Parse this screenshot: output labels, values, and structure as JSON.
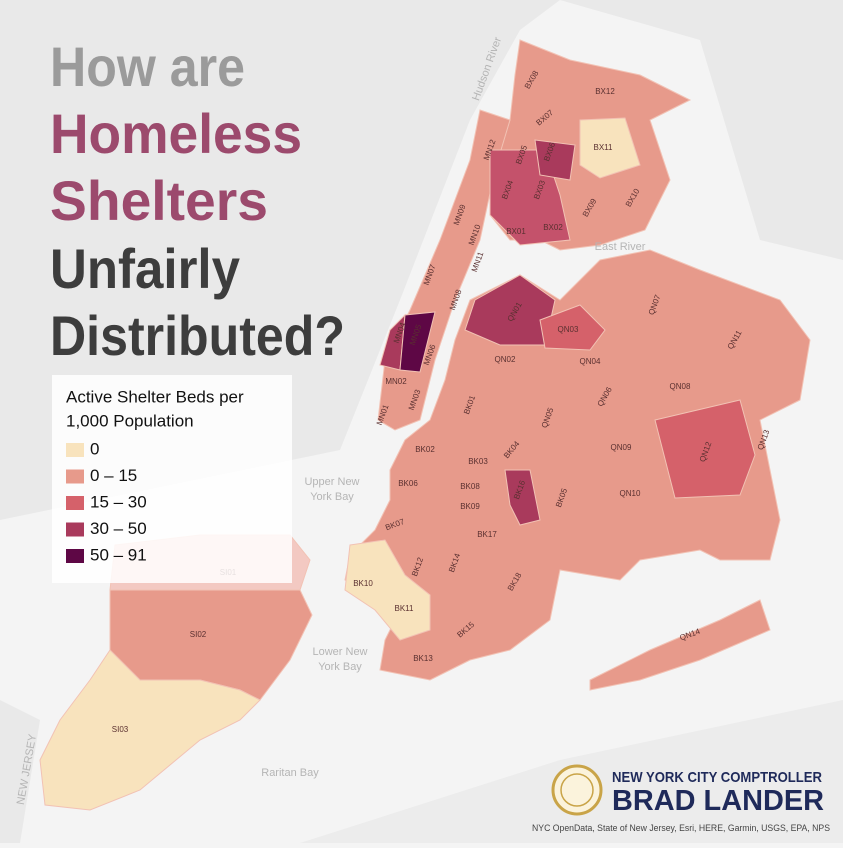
{
  "title": {
    "lines": [
      "How are",
      "Homeless",
      "Shelters",
      "Unfairly",
      "Distributed?"
    ]
  },
  "legend": {
    "title_lines": [
      "Active Shelter Beds per",
      "1,000 Population"
    ],
    "items": [
      {
        "label": "0",
        "color": "#f8e3bd"
      },
      {
        "label": "0 – 15",
        "color": "#e79a8b"
      },
      {
        "label": "15 – 30",
        "color": "#d5616a"
      },
      {
        "label": "30 – 50",
        "color": "#a93a5c"
      },
      {
        "label": "50 – 91",
        "color": "#5e0745"
      }
    ]
  },
  "districts": [
    "BX08",
    "BX12",
    "BX07",
    "BX05",
    "BX06",
    "BX11",
    "BX04",
    "BX03",
    "BX09",
    "BX10",
    "BX01",
    "BX02",
    "MN12",
    "MN09",
    "MN10",
    "MN11",
    "MN07",
    "MN08",
    "MN04",
    "MN05",
    "MN06",
    "MN02",
    "MN03",
    "MN01",
    "QN01",
    "QN03",
    "QN02",
    "QN04",
    "QN07",
    "QN11",
    "QN08",
    "QN06",
    "QN05",
    "QN09",
    "QN12",
    "QN13",
    "QN10",
    "QN14",
    "BK01",
    "BK02",
    "BK03",
    "BK04",
    "BK06",
    "BK08",
    "BK09",
    "BK16",
    "BK07",
    "BK17",
    "BK05",
    "BK10",
    "BK12",
    "BK14",
    "BK11",
    "BK18",
    "BK15",
    "BK13",
    "SI01",
    "SI02",
    "SI03"
  ],
  "water_labels": [
    [
      "Hudson River"
    ],
    [
      "East River"
    ],
    [
      "Upper New",
      "York Bay"
    ],
    [
      "Lower New",
      "York Bay"
    ],
    [
      "Raritan Bay"
    ],
    [
      "NEW JERSEY"
    ]
  ],
  "branding": {
    "line1": "NEW YORK CITY COMPTROLLER",
    "line2": "BRAD LANDER"
  },
  "attribution": "NYC OpenData, State of New Jersey, Esri, HERE, Garmin, USGS, EPA, NPS"
}
